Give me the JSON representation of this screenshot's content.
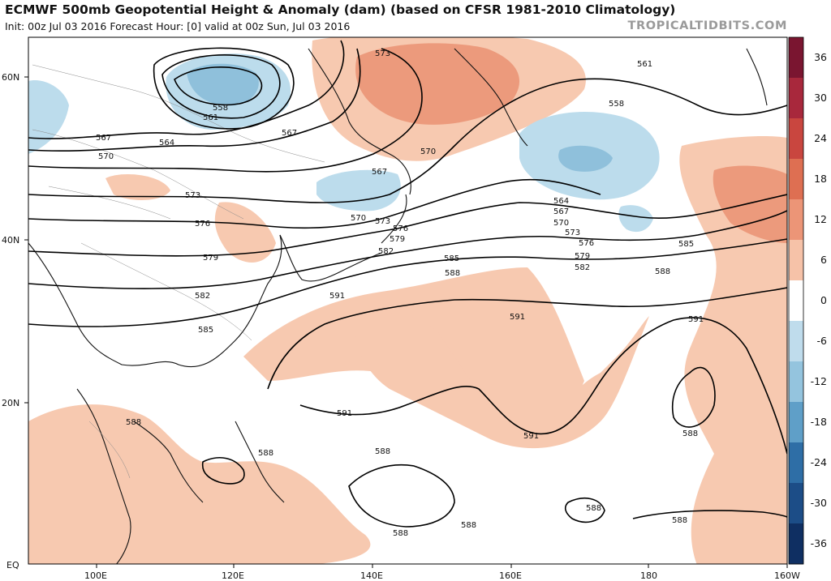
{
  "header": {
    "title": "ECMWF 500mb Geopotential Height & Anomaly (dam) (based on CFSR 1981-2010 Climatology)",
    "subtitle": "Init: 00z Jul 03 2016   Forecast Hour: [0]   valid at 00z Sun, Jul 03 2016",
    "brand": "TROPICALTIDBITS.COM"
  },
  "map": {
    "lat_labels": [
      "60N",
      "40N",
      "20N",
      "EQ"
    ],
    "lon_labels": [
      "100E",
      "120E",
      "140E",
      "160E",
      "180",
      "160W"
    ],
    "contour_labels": [
      "558",
      "561",
      "564",
      "567",
      "570",
      "573",
      "576",
      "579",
      "582",
      "585",
      "588",
      "591"
    ]
  },
  "colorbar": {
    "ticks": [
      "36",
      "30",
      "24",
      "18",
      "12",
      "6",
      "0",
      "-6",
      "-12",
      "-18",
      "-24",
      "-30",
      "-36"
    ],
    "colors": [
      "#7a1530",
      "#a8283c",
      "#c9463f",
      "#de6f52",
      "#ec9577",
      "#f6c2a8",
      "#ffffff",
      "#bfdcec",
      "#94c4de",
      "#5f9fc8",
      "#2e6ea6",
      "#1c4d87",
      "#0f2f62"
    ]
  }
}
